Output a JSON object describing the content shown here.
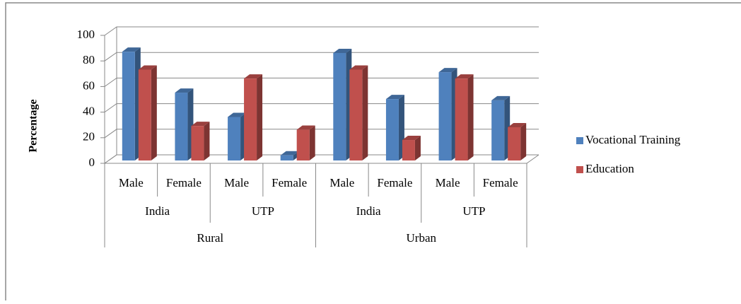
{
  "chart_data": {
    "type": "bar3d",
    "y_label": "Percentage",
    "categories": [
      "Male",
      "Female",
      "Male",
      "Female",
      "Male",
      "Female",
      "Male",
      "Female"
    ],
    "subgroups": [
      "India",
      "UTP",
      "India",
      "UTP"
    ],
    "groups": [
      "Rural",
      "Urban"
    ],
    "series": [
      {
        "name": "Vocational Training",
        "color": "#4f81bd",
        "values": [
          85,
          53,
          34,
          4,
          84,
          48,
          69,
          47
        ]
      },
      {
        "name": "Education",
        "color": "#c0504d",
        "values": [
          71,
          27,
          64,
          24,
          71,
          16,
          64,
          26
        ]
      }
    ],
    "ylim": [
      0,
      100
    ],
    "yticks": [
      0,
      20,
      40,
      60,
      80,
      100
    ],
    "grid": true,
    "legend": "right"
  }
}
